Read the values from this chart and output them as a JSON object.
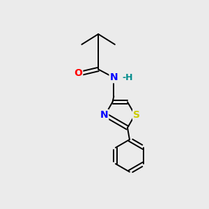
{
  "background_color": "#ebebeb",
  "bond_color": "#000000",
  "atom_colors": {
    "O": "#ff0000",
    "N": "#0000ff",
    "H": "#008b8b",
    "S": "#cccc00"
  },
  "font_size": 10,
  "figsize": [
    3.0,
    3.0
  ],
  "dpi": 100
}
